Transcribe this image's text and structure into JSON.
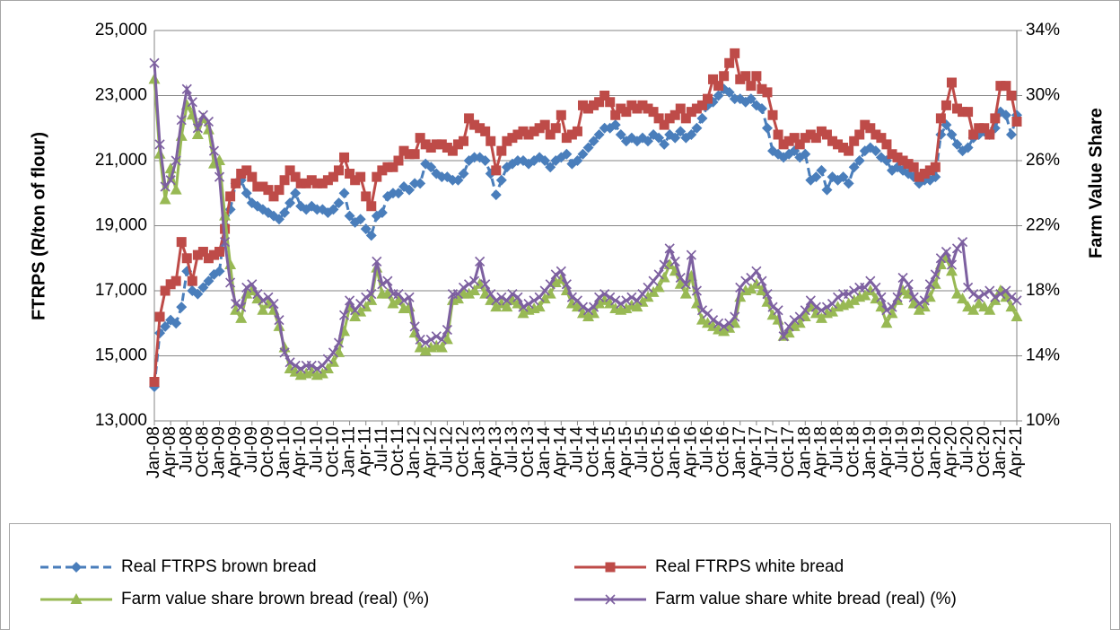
{
  "chart_data": {
    "type": "line",
    "categories": [
      "Jan-08",
      null,
      null,
      "Apr-08",
      null,
      null,
      "Jul-08",
      null,
      null,
      "Oct-08",
      null,
      null,
      "Jan-09",
      null,
      null,
      "Apr-09",
      null,
      null,
      "Jul-09",
      null,
      null,
      "Oct-09",
      null,
      null,
      "Jan-10",
      null,
      null,
      "Apr-10",
      null,
      null,
      "Jul-10",
      null,
      null,
      "Oct-10",
      null,
      null,
      "Jan-11",
      null,
      null,
      "Apr-11",
      null,
      null,
      "Jul-11",
      null,
      null,
      "Oct-11",
      null,
      null,
      "Jan-12",
      null,
      null,
      "Apr-12",
      null,
      null,
      "Jul-12",
      null,
      null,
      "Oct-12",
      null,
      null,
      "Jan-13",
      null,
      null,
      "Apr-13",
      null,
      null,
      "Jul-13",
      null,
      null,
      "Oct-13",
      null,
      null,
      "Jan-14",
      null,
      null,
      "Apr-14",
      null,
      null,
      "Jul-14",
      null,
      null,
      "Oct-14",
      null,
      null,
      "Jan-15",
      null,
      null,
      "Apr-15",
      null,
      null,
      "Jul-15",
      null,
      null,
      "Oct-15",
      null,
      null,
      "Jan-16",
      null,
      null,
      "Apr-16",
      null,
      null,
      "Jul-16",
      null,
      null,
      "Oct-16",
      null,
      null,
      "Jan-17",
      null,
      null,
      "Apr-17",
      null,
      null,
      "Jul-17",
      null,
      null,
      "Oct-17",
      null,
      null,
      "Jan-18",
      null,
      null,
      "Apr-18",
      null,
      null,
      "Jul-18",
      null,
      null,
      "Oct-18",
      null,
      null,
      "Jan-19",
      null,
      null,
      "Apr-19",
      null,
      null,
      "Jul-19",
      null,
      null,
      "Oct-19",
      null,
      null,
      "Jan-20",
      null,
      null,
      "Apr-20",
      null,
      null,
      "Jul-20",
      null,
      null,
      "Oct-20",
      null,
      null,
      "Jan-21",
      null,
      null,
      "Apr-21"
    ],
    "y_label": "FTRPS (R/ton of flour)",
    "y2_label": "Farm Value Share",
    "ylim": [
      13000,
      25000
    ],
    "yticks": [
      {
        "value": 13000,
        "label": "13,000"
      },
      {
        "value": 15000,
        "label": "15,000"
      },
      {
        "value": 17000,
        "label": "17,000"
      },
      {
        "value": 19000,
        "label": "19,000"
      },
      {
        "value": 21000,
        "label": "21,000"
      },
      {
        "value": 23000,
        "label": "23,000"
      },
      {
        "value": 25000,
        "label": "25,000"
      }
    ],
    "y2lim": [
      10,
      34
    ],
    "y2ticks": [
      {
        "value": 10,
        "label": "10%"
      },
      {
        "value": 14,
        "label": "14%"
      },
      {
        "value": 18,
        "label": "18%"
      },
      {
        "value": 22,
        "label": "22%"
      },
      {
        "value": 26,
        "label": "26%"
      },
      {
        "value": 30,
        "label": "30%"
      },
      {
        "value": 34,
        "label": "34%"
      }
    ],
    "grid": true,
    "legend": "bottom",
    "series": [
      {
        "name": "Real FTRPS brown bread",
        "color": "#4a7ebb",
        "marker": "diamond",
        "dashed": true,
        "values": [
          14050,
          15700,
          15900,
          16100,
          16000,
          16500,
          17600,
          17000,
          16900,
          17100,
          17300,
          17500,
          17600,
          19000,
          19500,
          20300,
          20400,
          20000,
          19700,
          19600,
          19500,
          19400,
          19300,
          19200,
          19400,
          19700,
          20000,
          19600,
          19500,
          19600,
          19500,
          19500,
          19400,
          19500,
          19700,
          20000,
          19300,
          19100,
          19200,
          18900,
          18700,
          19300,
          19400,
          19900,
          20000,
          20000,
          20200,
          20100,
          20300,
          20300,
          20900,
          20800,
          20600,
          20500,
          20500,
          20400,
          20400,
          20600,
          21000,
          21100,
          21100,
          21000,
          20600,
          19950,
          20400,
          20800,
          20900,
          21000,
          21000,
          20900,
          21000,
          21100,
          21000,
          20800,
          21000,
          21100,
          21200,
          20900,
          21000,
          21200,
          21400,
          21600,
          21800,
          22000,
          22000,
          22100,
          21800,
          21600,
          21700,
          21600,
          21700,
          21600,
          21800,
          21700,
          21500,
          21800,
          21700,
          21900,
          21700,
          21800,
          22000,
          22300,
          22700,
          22800,
          23000,
          23200,
          23100,
          22900,
          22900,
          22800,
          22900,
          22700,
          22600,
          22000,
          21300,
          21200,
          21100,
          21200,
          21300,
          21100,
          21200,
          20400,
          20500,
          20700,
          20100,
          20500,
          20400,
          20500,
          20300,
          20800,
          21000,
          21300,
          21400,
          21300,
          21100,
          21000,
          20700,
          20800,
          20700,
          20600,
          20500,
          20300,
          20400,
          20400,
          20500,
          21800,
          22100,
          21800,
          21500,
          21300,
          21400,
          21700,
          21800,
          21900,
          21800,
          22000,
          22500,
          22400,
          21800,
          22400
        ]
      },
      {
        "name": "Real FTRPS white bread",
        "color": "#be4b48",
        "marker": "square",
        "dashed": false,
        "values": [
          14200,
          16200,
          17000,
          17200,
          17300,
          18500,
          18000,
          17300,
          18100,
          18200,
          18000,
          18100,
          18200,
          18900,
          19900,
          20300,
          20600,
          20700,
          20500,
          20200,
          20200,
          20100,
          19900,
          20100,
          20400,
          20700,
          20500,
          20300,
          20300,
          20400,
          20300,
          20300,
          20400,
          20500,
          20700,
          21100,
          20600,
          20400,
          20500,
          19900,
          19600,
          20500,
          20700,
          20800,
          20800,
          21000,
          21300,
          21200,
          21200,
          21700,
          21500,
          21400,
          21500,
          21500,
          21400,
          21300,
          21500,
          21600,
          22300,
          22100,
          22000,
          21900,
          21600,
          20700,
          21300,
          21600,
          21700,
          21800,
          21900,
          21800,
          21900,
          22000,
          22100,
          21800,
          22000,
          22400,
          21700,
          21800,
          21900,
          22700,
          22600,
          22700,
          22800,
          23000,
          22800,
          22400,
          22600,
          22500,
          22700,
          22600,
          22700,
          22600,
          22500,
          22300,
          22100,
          22300,
          22400,
          22600,
          22300,
          22500,
          22600,
          22700,
          22900,
          23500,
          23300,
          23600,
          24000,
          24300,
          23500,
          23600,
          23300,
          23600,
          23200,
          23100,
          22400,
          21800,
          21500,
          21600,
          21700,
          21500,
          21700,
          21800,
          21700,
          21900,
          21800,
          21600,
          21500,
          21400,
          21300,
          21600,
          21800,
          22100,
          22000,
          21800,
          21700,
          21500,
          21200,
          21100,
          21000,
          20900,
          20800,
          20500,
          20600,
          20700,
          20800,
          22300,
          22700,
          23400,
          22600,
          22500,
          22500,
          21800,
          22000,
          22000,
          21800,
          22300,
          23300,
          23300,
          23000,
          22200
        ]
      },
      {
        "name": "Farm value share brown bread (real) (%)",
        "color": "#98b954",
        "marker": "triangle",
        "dashed": false,
        "axis": "y2",
        "values": [
          31.0,
          26.4,
          23.6,
          25.5,
          24.2,
          27.5,
          29.4,
          28.8,
          27.6,
          28.6,
          27.9,
          25.8,
          26.0,
          22.6,
          19.6,
          16.8,
          16.3,
          17.8,
          18.0,
          17.5,
          16.8,
          17.2,
          16.8,
          15.8,
          14.5,
          13.2,
          13.0,
          12.8,
          12.9,
          13.0,
          12.8,
          12.9,
          13.2,
          13.6,
          14.2,
          15.5,
          17.0,
          16.4,
          16.7,
          17.0,
          17.4,
          19.4,
          17.8,
          17.8,
          17.2,
          17.4,
          16.9,
          17.0,
          15.4,
          14.5,
          14.3,
          14.5,
          14.6,
          14.5,
          15.0,
          17.4,
          17.5,
          17.8,
          17.8,
          18.0,
          18.4,
          17.8,
          17.4,
          17.0,
          17.2,
          17.0,
          17.4,
          17.2,
          16.6,
          16.8,
          16.9,
          17.0,
          17.5,
          17.8,
          18.5,
          18.7,
          18.0,
          17.2,
          17.0,
          16.6,
          16.4,
          16.6,
          17.2,
          17.4,
          17.2,
          16.9,
          16.8,
          16.9,
          17.1,
          17.0,
          17.3,
          17.6,
          17.9,
          18.2,
          18.8,
          19.6,
          19.2,
          18.4,
          17.8,
          18.9,
          17.2,
          16.2,
          16.0,
          15.8,
          15.6,
          15.5,
          15.7,
          16.0,
          17.6,
          18.0,
          18.1,
          18.4,
          18.0,
          17.3,
          16.5,
          16.2,
          15.2,
          15.4,
          15.8,
          16.0,
          16.4,
          17.0,
          16.6,
          16.3,
          16.6,
          16.7,
          17.0,
          17.1,
          17.2,
          17.4,
          17.6,
          17.7,
          18.0,
          17.5,
          17.0,
          16.0,
          16.6,
          17.4,
          18.0,
          17.8,
          17.2,
          16.8,
          17.0,
          17.6,
          18.4,
          19.6,
          20.0,
          19.2,
          17.8,
          17.5,
          17.0,
          16.8,
          17.2,
          17.0,
          16.8,
          17.4,
          18.0,
          17.6,
          17.0,
          16.4
        ]
      },
      {
        "name": "Farm value share white bread (real) (%)",
        "color": "#7d60a0",
        "marker": "cross",
        "dashed": false,
        "axis": "y2",
        "values": [
          32.0,
          27.0,
          24.4,
          24.8,
          26.0,
          28.5,
          30.4,
          29.6,
          28.0,
          28.8,
          28.4,
          26.6,
          25.0,
          21.0,
          18.5,
          17.2,
          17.0,
          18.2,
          18.4,
          17.8,
          17.4,
          17.6,
          17.2,
          16.2,
          14.2,
          13.6,
          13.4,
          13.2,
          13.4,
          13.4,
          13.2,
          13.4,
          13.8,
          14.2,
          14.8,
          16.5,
          17.4,
          16.8,
          17.2,
          17.6,
          17.8,
          19.8,
          18.4,
          18.6,
          17.8,
          17.8,
          17.4,
          17.6,
          15.8,
          15.0,
          14.8,
          15.0,
          15.2,
          15.0,
          15.6,
          17.8,
          17.8,
          18.2,
          18.4,
          18.6,
          19.8,
          18.4,
          17.8,
          17.4,
          17.6,
          17.4,
          17.8,
          17.6,
          17.0,
          17.2,
          17.4,
          17.6,
          18.0,
          18.4,
          19.0,
          19.2,
          18.4,
          17.6,
          17.4,
          17.0,
          16.8,
          17.0,
          17.6,
          17.8,
          17.6,
          17.4,
          17.2,
          17.4,
          17.6,
          17.4,
          17.8,
          18.2,
          18.6,
          19.0,
          19.6,
          20.6,
          19.8,
          18.8,
          18.4,
          20.2,
          18.0,
          16.8,
          16.6,
          16.2,
          16.0,
          15.8,
          16.0,
          16.4,
          18.2,
          18.6,
          18.8,
          19.2,
          18.6,
          17.8,
          17.0,
          16.8,
          15.2,
          15.8,
          16.2,
          16.4,
          16.8,
          17.4,
          17.0,
          16.8,
          17.0,
          17.2,
          17.6,
          17.8,
          17.8,
          18.0,
          18.2,
          18.2,
          18.6,
          18.2,
          17.6,
          16.8,
          17.0,
          17.6,
          18.8,
          18.4,
          17.6,
          17.2,
          17.4,
          18.4,
          19.0,
          20.0,
          20.4,
          19.6,
          20.6,
          21.0,
          18.2,
          17.8,
          17.6,
          17.8,
          18.0,
          17.6,
          17.8,
          18.0,
          17.6,
          17.4
        ]
      }
    ]
  }
}
